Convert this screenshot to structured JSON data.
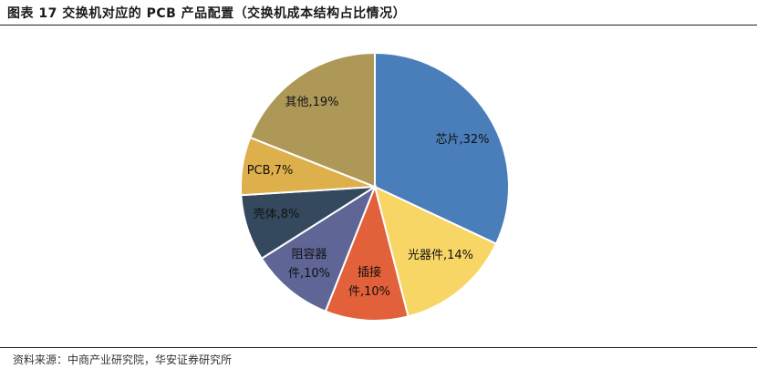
{
  "header": {
    "title": "图表 17 交换机对应的 PCB 产品配置（交换机成本结构占比情况）"
  },
  "footer": {
    "source": "资料来源：中商产业研究院，华安证券研究所"
  },
  "chart_data": {
    "type": "pie",
    "title": "",
    "slices": [
      {
        "label": "芯片",
        "value": 32,
        "text": "芯片,32%",
        "color": "#4A7EBB"
      },
      {
        "label": "光器件",
        "value": 14,
        "text": "光器件,14%",
        "color": "#F7D666"
      },
      {
        "label": "插接件",
        "value": 10,
        "text": "插接件,10%",
        "color": "#E2603A"
      },
      {
        "label": "阻容器件",
        "value": 10,
        "text": "阻容器件,10%",
        "color": "#5F6696"
      },
      {
        "label": "壳体",
        "value": 8,
        "text": "壳体,8%",
        "color": "#34495E"
      },
      {
        "label": "PCB",
        "value": 7,
        "text": "PCB,7%",
        "color": "#DDB04C"
      },
      {
        "label": "其他",
        "value": 19,
        "text": "其他,19%",
        "color": "#AD9858"
      }
    ]
  }
}
